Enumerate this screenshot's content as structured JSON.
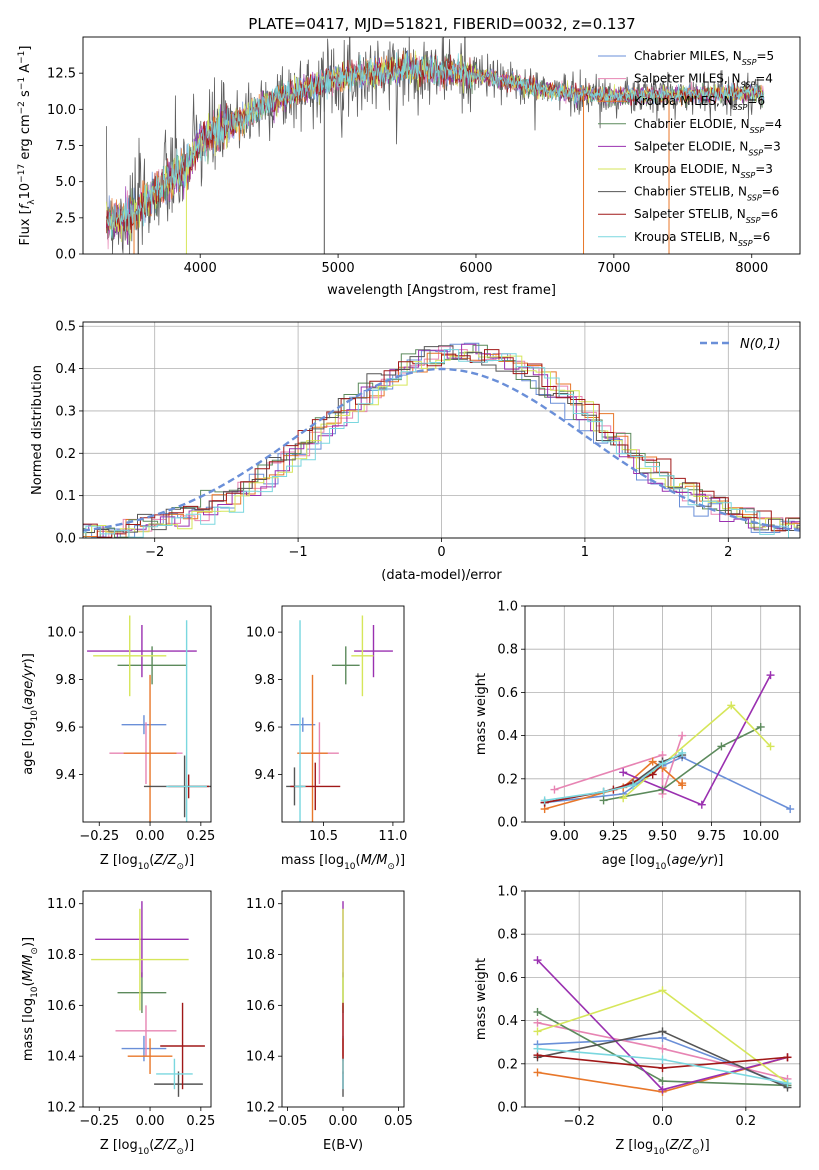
{
  "figure": {
    "title": "PLATE=0417, MJD=51821, FIBERID=0032, z=0.137"
  },
  "colors": {
    "Chabrier MILES": "#6a8fd8",
    "Salpeter MILES": "#e784b3",
    "Kroupa MILES": "#e8772a",
    "Chabrier ELODIE": "#5c8a5c",
    "Salpeter ELODIE": "#9a30b0",
    "Kroupa ELODIE": "#d6e65a",
    "Chabrier STELIB": "#555555",
    "Salpeter STELIB": "#a01818",
    "Kroupa STELIB": "#7ad7df",
    "gaussian": "#6a8fd8"
  },
  "chart_data": [
    {
      "id": "spectrum",
      "type": "line",
      "xlabel": "wavelength [Angstrom, rest frame]",
      "ylabel": "Flux [f_λ 10^-17 erg cm^-2 s^-1 A^-1]",
      "xlim": [
        3150,
        8350
      ],
      "ylim": [
        0,
        15
      ],
      "xticks": [
        4000,
        5000,
        6000,
        7000,
        8000
      ],
      "yticks": [
        0.0,
        2.5,
        5.0,
        7.5,
        10.0,
        12.5
      ],
      "legend_position": "top-right",
      "legend": [
        {
          "name": "Chabrier MILES",
          "nssp": "5"
        },
        {
          "name": "Salpeter MILES",
          "nssp": "4"
        },
        {
          "name": "Kroupa MILES",
          "nssp": "6"
        },
        {
          "name": "Chabrier ELODIE",
          "nssp": "4"
        },
        {
          "name": "Salpeter ELODIE",
          "nssp": "3"
        },
        {
          "name": "Kroupa ELODIE",
          "nssp": "3"
        },
        {
          "name": "Chabrier STELIB",
          "nssp": "6"
        },
        {
          "name": "Salpeter STELIB",
          "nssp": "6"
        },
        {
          "name": "Kroupa STELIB",
          "nssp": "6"
        }
      ],
      "continuum": [
        [
          3320,
          2.3
        ],
        [
          3500,
          2.6
        ],
        [
          3700,
          4.5
        ],
        [
          3900,
          6.0
        ],
        [
          4000,
          7.8
        ],
        [
          4200,
          8.8
        ],
        [
          4500,
          10.5
        ],
        [
          5000,
          12.2
        ],
        [
          5500,
          12.8
        ],
        [
          6000,
          12.4
        ],
        [
          6500,
          11.3
        ],
        [
          7000,
          10.9
        ],
        [
          7500,
          11.0
        ],
        [
          8000,
          11.1
        ],
        [
          8090,
          11.0
        ]
      ]
    },
    {
      "id": "residuals",
      "type": "bar",
      "xlabel": "(data-model)/error",
      "ylabel": "Normed distribution",
      "xlim": [
        -2.5,
        2.5
      ],
      "ylim": [
        0,
        0.51
      ],
      "xticks": [
        -2,
        -1,
        0,
        1,
        2
      ],
      "yticks": [
        0.0,
        0.1,
        0.2,
        0.3,
        0.4,
        0.5
      ],
      "grid": true,
      "legend_position": "top-right",
      "gaussian_label": "N(0,1)"
    },
    {
      "id": "Z-age",
      "type": "scatter",
      "xlabel": "Z [log10(Z/Zsun)]",
      "ylabel": "age [log10(age/yr)]",
      "xlim": [
        -0.33,
        0.3
      ],
      "ylim": [
        9.2,
        10.11
      ],
      "xticks": [
        -0.25,
        0.0,
        0.25
      ],
      "yticks": [
        9.4,
        9.6,
        9.8,
        10.0
      ],
      "points": [
        {
          "model": "Chabrier MILES",
          "x": -0.03,
          "xerr": 0.11,
          "y": 9.61,
          "yerr": 0.04
        },
        {
          "model": "Salpeter MILES",
          "x": -0.02,
          "xerr": 0.18,
          "y": 9.49,
          "yerr": 0.13
        },
        {
          "model": "Kroupa MILES",
          "x": 0.0,
          "xerr": 0.13,
          "y": 9.49,
          "yerr": 0.33
        },
        {
          "model": "Chabrier ELODIE",
          "x": 0.01,
          "xerr": 0.17,
          "y": 9.86,
          "yerr": 0.08
        },
        {
          "model": "Salpeter ELODIE",
          "x": -0.04,
          "xerr": 0.27,
          "y": 9.92,
          "yerr": 0.11
        },
        {
          "model": "Kroupa ELODIE",
          "x": -0.1,
          "xerr": 0.18,
          "y": 9.9,
          "yerr": 0.17
        },
        {
          "model": "Chabrier STELIB",
          "x": 0.17,
          "xerr": 0.2,
          "y": 9.35,
          "yerr": 0.13
        },
        {
          "model": "Salpeter STELIB",
          "x": 0.19,
          "xerr": 0.1,
          "y": 9.35,
          "yerr": 0.05
        },
        {
          "model": "Kroupa STELIB",
          "x": 0.18,
          "xerr": 0.1,
          "y": 9.35,
          "yerr": 0.7
        }
      ]
    },
    {
      "id": "mass-age",
      "type": "scatter",
      "xlabel": "mass [log10(M/Msun)]",
      "ylabel": "",
      "xlim": [
        10.2,
        11.08
      ],
      "ylim": [
        9.2,
        10.11
      ],
      "xticks": [
        10.5,
        11.0
      ],
      "yticks": [
        9.4,
        9.6,
        9.8,
        10.0
      ],
      "points": [
        {
          "model": "Chabrier MILES",
          "x": 10.35,
          "xerr": 0.09,
          "y": 9.61,
          "yerr": 0.03
        },
        {
          "model": "Salpeter MILES",
          "x": 10.47,
          "xerr": 0.14,
          "y": 9.49,
          "yerr": 0.13
        },
        {
          "model": "Kroupa MILES",
          "x": 10.42,
          "xerr": 0.11,
          "y": 9.49,
          "yerr": 0.33
        },
        {
          "model": "Chabrier ELODIE",
          "x": 10.66,
          "xerr": 0.1,
          "y": 9.86,
          "yerr": 0.08
        },
        {
          "model": "Salpeter ELODIE",
          "x": 10.86,
          "xerr": 0.14,
          "y": 9.92,
          "yerr": 0.11
        },
        {
          "model": "Kroupa ELODIE",
          "x": 10.78,
          "xerr": 0.08,
          "y": 9.9,
          "yerr": 0.17
        },
        {
          "model": "Chabrier STELIB",
          "x": 10.29,
          "xerr": 0.06,
          "y": 9.35,
          "yerr": 0.08
        },
        {
          "model": "Salpeter STELIB",
          "x": 10.44,
          "xerr": 0.18,
          "y": 9.35,
          "yerr": 0.1
        },
        {
          "model": "Kroupa STELIB",
          "x": 10.33,
          "xerr": 0.04,
          "y": 9.35,
          "yerr": 0.7
        }
      ]
    },
    {
      "id": "weight-age",
      "type": "line",
      "xlabel": "age [log10(age/yr)]",
      "ylabel": "mass weight",
      "xlim": [
        8.8,
        10.2
      ],
      "ylim": [
        0,
        1
      ],
      "xticks": [
        9.0,
        9.25,
        9.5,
        9.75,
        10.0
      ],
      "yticks": [
        0.0,
        0.2,
        0.4,
        0.6,
        0.8,
        1.0
      ],
      "grid": true,
      "series": [
        {
          "model": "Chabrier MILES",
          "x": [
            8.9,
            9.3,
            9.5,
            9.6,
            10.15
          ],
          "y": [
            0.09,
            0.13,
            0.26,
            0.3,
            0.06
          ]
        },
        {
          "model": "Salpeter MILES",
          "x": [
            8.95,
            9.5,
            9.5,
            9.6
          ],
          "y": [
            0.15,
            0.31,
            0.13,
            0.4
          ]
        },
        {
          "model": "Kroupa MILES",
          "x": [
            8.9,
            9.3,
            9.45,
            9.5,
            9.6,
            9.6
          ],
          "y": [
            0.06,
            0.16,
            0.28,
            0.25,
            0.17,
            0.18
          ]
        },
        {
          "model": "Chabrier ELODIE",
          "x": [
            9.2,
            9.5,
            9.8,
            10.0
          ],
          "y": [
            0.1,
            0.15,
            0.35,
            0.44
          ]
        },
        {
          "model": "Salpeter ELODIE",
          "x": [
            9.3,
            9.7,
            10.05
          ],
          "y": [
            0.23,
            0.08,
            0.68
          ]
        },
        {
          "model": "Kroupa ELODIE",
          "x": [
            9.3,
            9.85,
            10.05
          ],
          "y": [
            0.11,
            0.54,
            0.35
          ]
        },
        {
          "model": "Chabrier STELIB",
          "x": [
            8.9,
            9.2,
            9.35,
            9.5,
            9.6
          ],
          "y": [
            0.09,
            0.14,
            0.18,
            0.28,
            0.31
          ]
        },
        {
          "model": "Salpeter STELIB",
          "x": [
            8.9,
            9.25,
            9.45,
            9.5
          ],
          "y": [
            0.09,
            0.15,
            0.22,
            0.27
          ]
        },
        {
          "model": "Kroupa STELIB",
          "x": [
            8.9,
            9.2,
            9.35,
            9.5,
            9.6
          ],
          "y": [
            0.1,
            0.14,
            0.17,
            0.27,
            0.32
          ]
        }
      ]
    },
    {
      "id": "Z-mass",
      "type": "scatter",
      "xlabel": "Z [log10(Z/Zsun)]",
      "ylabel": "mass [log10(M/Msun)]",
      "xlim": [
        -0.33,
        0.3
      ],
      "ylim": [
        10.2,
        11.05
      ],
      "xticks": [
        -0.25,
        0.0,
        0.25
      ],
      "yticks": [
        10.2,
        10.4,
        10.6,
        10.8,
        11.0
      ],
      "points": [
        {
          "model": "Chabrier MILES",
          "x": -0.03,
          "xerr": 0.11,
          "y": 10.43,
          "yerr": 0.05
        },
        {
          "model": "Salpeter MILES",
          "x": -0.02,
          "xerr": 0.15,
          "y": 10.5,
          "yerr": 0.1
        },
        {
          "model": "Kroupa MILES",
          "x": 0.0,
          "xerr": 0.11,
          "y": 10.4,
          "yerr": 0.07
        },
        {
          "model": "Chabrier ELODIE",
          "x": -0.04,
          "xerr": 0.12,
          "y": 10.65,
          "yerr": 0.08
        },
        {
          "model": "Salpeter ELODIE",
          "x": -0.04,
          "xerr": 0.23,
          "y": 10.86,
          "yerr": 0.15
        },
        {
          "model": "Kroupa ELODIE",
          "x": -0.05,
          "xerr": 0.24,
          "y": 10.78,
          "yerr": 0.2
        },
        {
          "model": "Chabrier STELIB",
          "x": 0.14,
          "xerr": 0.12,
          "y": 10.29,
          "yerr": 0.05
        },
        {
          "model": "Salpeter STELIB",
          "x": 0.16,
          "xerr": 0.11,
          "y": 10.44,
          "yerr": 0.17
        },
        {
          "model": "Kroupa STELIB",
          "x": 0.12,
          "xerr": 0.09,
          "y": 10.33,
          "yerr": 0.06
        }
      ]
    },
    {
      "id": "ebv-mass",
      "type": "scatter",
      "xlabel": "E(B-V)",
      "ylabel": "",
      "xlim": [
        -0.055,
        0.055
      ],
      "ylim": [
        10.2,
        11.05
      ],
      "xticks": [
        -0.05,
        0.0,
        0.05
      ],
      "yticks": [
        10.2,
        10.4,
        10.6,
        10.8,
        11.0
      ],
      "points": [
        {
          "model": "Chabrier MILES",
          "x": 0.0,
          "xerr": 0.0,
          "y": 10.43,
          "yerr": 0.05
        },
        {
          "model": "Salpeter MILES",
          "x": 0.0,
          "xerr": 0.0,
          "y": 10.5,
          "yerr": 0.1
        },
        {
          "model": "Kroupa MILES",
          "x": 0.0,
          "xerr": 0.0,
          "y": 10.4,
          "yerr": 0.07
        },
        {
          "model": "Chabrier ELODIE",
          "x": 0.0,
          "xerr": 0.0,
          "y": 10.65,
          "yerr": 0.08
        },
        {
          "model": "Salpeter ELODIE",
          "x": 0.0,
          "xerr": 0.0,
          "y": 10.86,
          "yerr": 0.15
        },
        {
          "model": "Kroupa ELODIE",
          "x": 0.0,
          "xerr": 0.0,
          "y": 10.78,
          "yerr": 0.2
        },
        {
          "model": "Chabrier STELIB",
          "x": 0.0,
          "xerr": 0.0,
          "y": 10.29,
          "yerr": 0.05
        },
        {
          "model": "Salpeter STELIB",
          "x": 0.0,
          "xerr": 0.0,
          "y": 10.44,
          "yerr": 0.17
        },
        {
          "model": "Kroupa STELIB",
          "x": 0.0,
          "xerr": 0.0,
          "y": 10.33,
          "yerr": 0.06
        }
      ]
    },
    {
      "id": "weight-Z",
      "type": "line",
      "xlabel": "Z [log10(Z/Zsun)]",
      "ylabel": "mass weight",
      "xlim": [
        -0.33,
        0.33
      ],
      "ylim": [
        0,
        1
      ],
      "xticks": [
        -0.2,
        0.0,
        0.2
      ],
      "yticks": [
        0.0,
        0.2,
        0.4,
        0.6,
        0.8,
        1.0
      ],
      "grid": true,
      "series": [
        {
          "model": "Chabrier MILES",
          "x": [
            -0.3,
            0.0,
            0.3
          ],
          "y": [
            0.29,
            0.32,
            0.1
          ]
        },
        {
          "model": "Salpeter MILES",
          "x": [
            -0.3,
            0.0,
            0.3
          ],
          "y": [
            0.39,
            0.27,
            0.13
          ]
        },
        {
          "model": "Kroupa MILES",
          "x": [
            -0.3,
            0.0,
            0.3
          ],
          "y": [
            0.16,
            0.07,
            0.23
          ]
        },
        {
          "model": "Chabrier ELODIE",
          "x": [
            -0.3,
            0.0,
            0.3
          ],
          "y": [
            0.44,
            0.12,
            0.1
          ]
        },
        {
          "model": "Salpeter ELODIE",
          "x": [
            -0.3,
            0.0,
            0.3
          ],
          "y": [
            0.68,
            0.08,
            0.23
          ]
        },
        {
          "model": "Kroupa ELODIE",
          "x": [
            -0.3,
            0.0,
            0.3
          ],
          "y": [
            0.35,
            0.54,
            0.11
          ]
        },
        {
          "model": "Chabrier STELIB",
          "x": [
            -0.3,
            0.0,
            0.3
          ],
          "y": [
            0.23,
            0.35,
            0.09
          ]
        },
        {
          "model": "Salpeter STELIB",
          "x": [
            -0.3,
            0.0,
            0.3
          ],
          "y": [
            0.24,
            0.18,
            0.23
          ]
        },
        {
          "model": "Kroupa STELIB",
          "x": [
            -0.3,
            0.0,
            0.3
          ],
          "y": [
            0.27,
            0.22,
            0.11
          ]
        }
      ]
    }
  ]
}
